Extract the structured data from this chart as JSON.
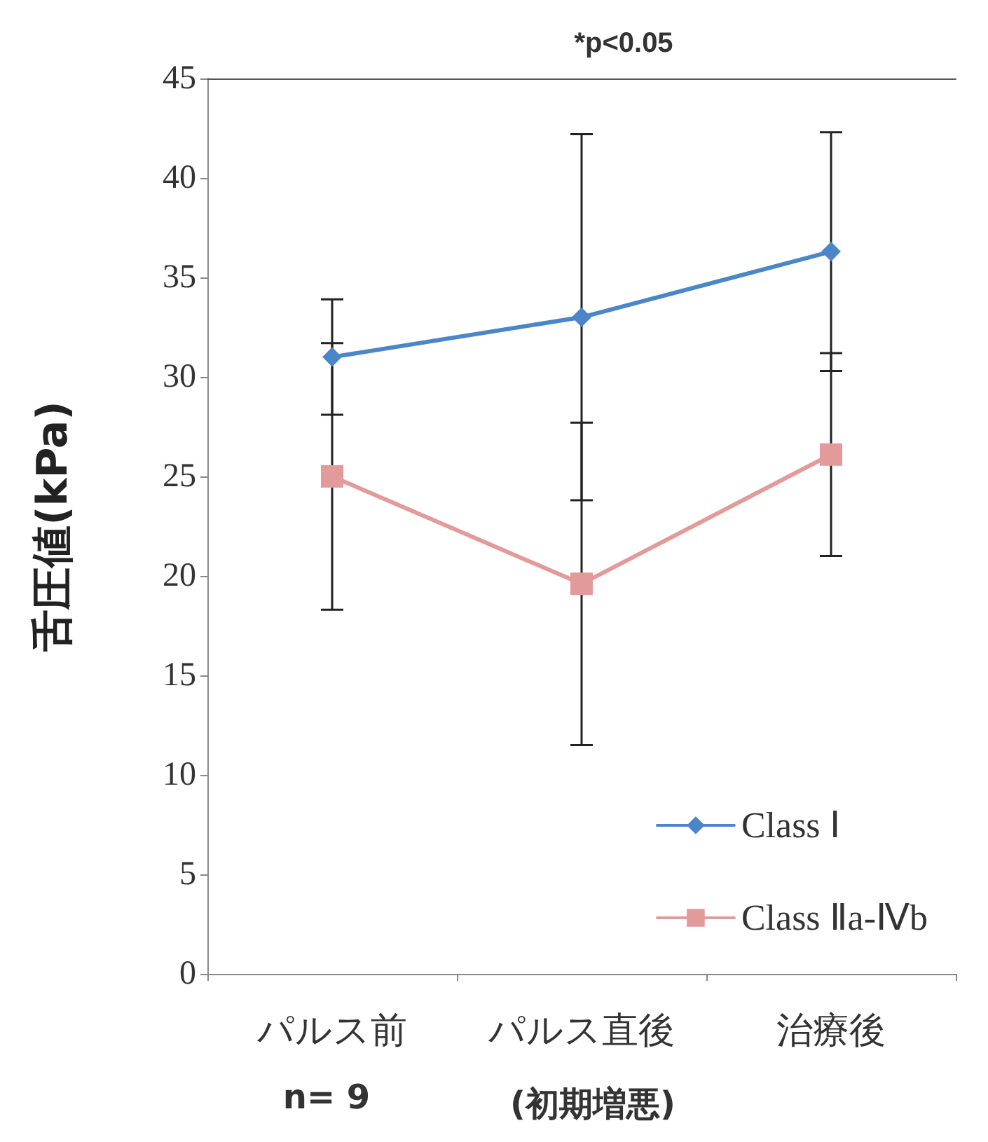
{
  "chart_data": {
    "type": "line",
    "title": "*p<0.05",
    "ylabel": "舌圧値(kPa)",
    "categories": [
      "パルス前",
      "パルス直後",
      "治療後"
    ],
    "series": [
      {
        "name": "Class Ⅰ",
        "color": "#4a86c8",
        "marker": "diamond",
        "values": [
          31.0,
          33.0,
          36.3
        ],
        "errors": [
          2.9,
          9.2,
          6.0
        ]
      },
      {
        "name": "Class Ⅱa-Ⅳb",
        "color": "#e39a9a",
        "marker": "square",
        "values": [
          25.0,
          19.6,
          26.1
        ],
        "errors": [
          6.7,
          8.1,
          5.1
        ]
      }
    ],
    "ylim": [
      0,
      45
    ],
    "yticks": [
      0,
      5,
      10,
      15,
      20,
      25,
      30,
      35,
      40,
      45
    ],
    "grid": false,
    "legend": "bottom right",
    "annotations": [
      "n= 9",
      "(初期増悪)"
    ]
  }
}
